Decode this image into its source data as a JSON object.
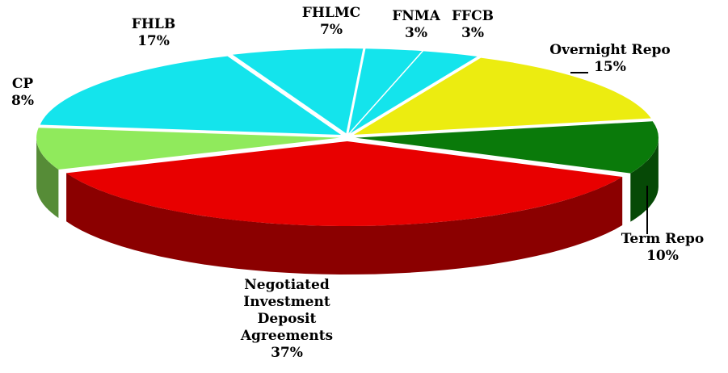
{
  "chart_data": {
    "type": "pie",
    "categories": [
      "FHLMC",
      "FNMA",
      "FFCB",
      "Overnight Repo",
      "Term Repo",
      "Negotiated Investment Deposit Agreements",
      "CP",
      "FHLB"
    ],
    "values": [
      7,
      3,
      3,
      15,
      10,
      37,
      8,
      17
    ],
    "value_labels": [
      "7%",
      "3%",
      "3%",
      "15%",
      "10%",
      "37%",
      "8%",
      "17%"
    ],
    "colors": [
      "#14e4ec",
      "#14e4ec",
      "#14e4ec",
      "#ecec10",
      "#0a7a0a",
      "#e80000",
      "#90ea5c",
      "#14e4ec"
    ]
  }
}
